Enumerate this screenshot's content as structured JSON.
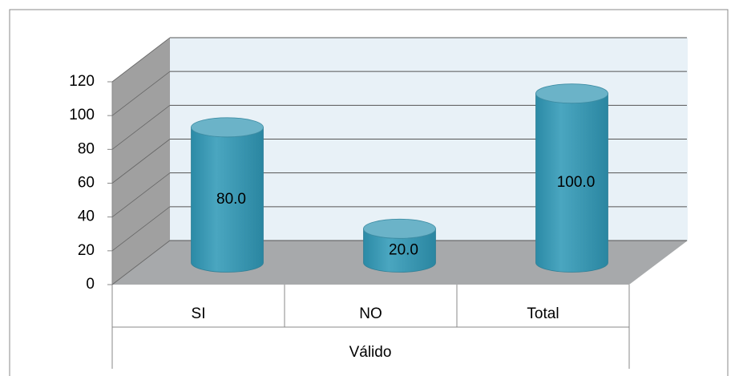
{
  "chart_data": {
    "type": "cylinder",
    "categories": [
      "SI",
      "NO",
      "Total"
    ],
    "group": "Válido",
    "values": [
      80,
      20,
      100
    ],
    "value_labels": [
      "80.0",
      "20.0",
      "100.0"
    ],
    "color": "#93cddd",
    "ylim": [
      0,
      120
    ],
    "yticks": [
      0,
      20,
      40,
      60,
      80,
      100,
      120
    ],
    "grid": true
  }
}
